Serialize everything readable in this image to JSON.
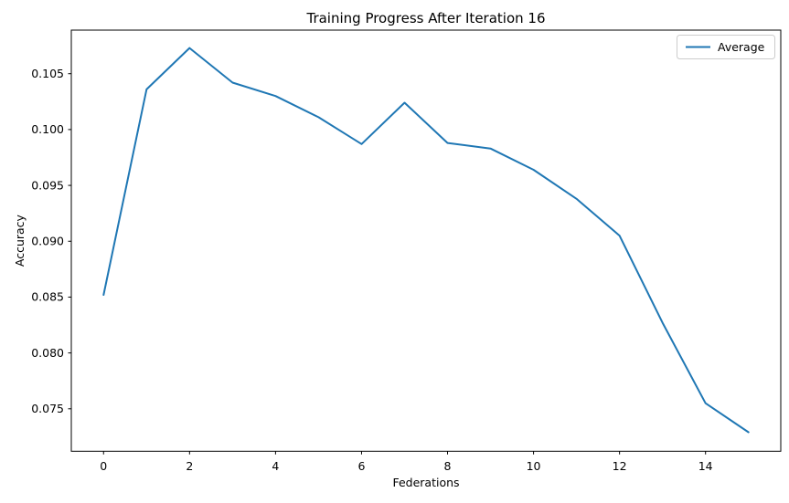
{
  "figure": {
    "background": "#ffffff",
    "text_color": "#000000",
    "spine_color": "#000000",
    "legend": {
      "label": "Average",
      "border_color": "#cccccc",
      "background": "#ffffff"
    }
  },
  "chart_data": {
    "type": "line",
    "title": "Training Progress After Iteration 16",
    "xlabel": "Federations",
    "ylabel": "Accuracy",
    "x": [
      0,
      1,
      2,
      3,
      4,
      5,
      6,
      7,
      8,
      9,
      10,
      11,
      12,
      13,
      14,
      15
    ],
    "series": [
      {
        "name": "Average",
        "color": "#1f77b4",
        "values": [
          0.0852,
          0.1036,
          0.1073,
          0.1042,
          0.103,
          0.1011,
          0.0987,
          0.1024,
          0.0988,
          0.0983,
          0.0964,
          0.0938,
          0.0905,
          0.0827,
          0.0755,
          0.0729
        ]
      }
    ],
    "xlim": [
      -0.75,
      15.75
    ],
    "ylim": [
      0.0712,
      0.1089
    ],
    "xticks": [
      0,
      2,
      4,
      6,
      8,
      10,
      12,
      14
    ],
    "xtick_labels": [
      "0",
      "2",
      "4",
      "6",
      "8",
      "10",
      "12",
      "14"
    ],
    "yticks": [
      0.075,
      0.08,
      0.085,
      0.09,
      0.095,
      0.1,
      0.105
    ],
    "ytick_labels": [
      "0.075",
      "0.080",
      "0.085",
      "0.090",
      "0.095",
      "0.100",
      "0.105"
    ],
    "grid": false,
    "legend_position": "upper right"
  }
}
